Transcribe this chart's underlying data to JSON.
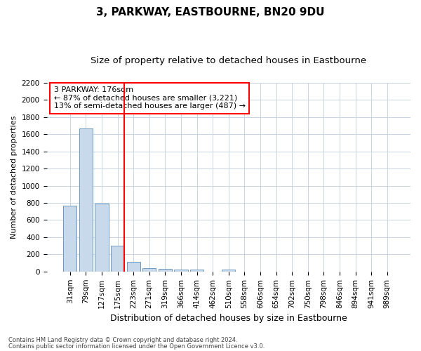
{
  "title": "3, PARKWAY, EASTBOURNE, BN20 9DU",
  "subtitle": "Size of property relative to detached houses in Eastbourne",
  "xlabel": "Distribution of detached houses by size in Eastbourne",
  "ylabel": "Number of detached properties",
  "categories": [
    "31sqm",
    "79sqm",
    "127sqm",
    "175sqm",
    "223sqm",
    "271sqm",
    "319sqm",
    "366sqm",
    "414sqm",
    "462sqm",
    "510sqm",
    "558sqm",
    "606sqm",
    "654sqm",
    "702sqm",
    "750sqm",
    "798sqm",
    "846sqm",
    "894sqm",
    "941sqm",
    "989sqm"
  ],
  "values": [
    770,
    1670,
    790,
    300,
    110,
    40,
    30,
    20,
    20,
    0,
    20,
    0,
    0,
    0,
    0,
    0,
    0,
    0,
    0,
    0,
    0
  ],
  "bar_color": "#c9d9ec",
  "bar_edge_color": "#5b8db8",
  "vline_color": "red",
  "vline_x_index": 3,
  "annotation_text": "3 PARKWAY: 176sqm\n← 87% of detached houses are smaller (3,221)\n13% of semi-detached houses are larger (487) →",
  "annotation_box_color": "white",
  "annotation_box_edge_color": "red",
  "ylim": [
    0,
    2200
  ],
  "yticks": [
    0,
    200,
    400,
    600,
    800,
    1000,
    1200,
    1400,
    1600,
    1800,
    2000,
    2200
  ],
  "footnote1": "Contains HM Land Registry data © Crown copyright and database right 2024.",
  "footnote2": "Contains public sector information licensed under the Open Government Licence v3.0.",
  "background_color": "#ffffff",
  "grid_color": "#c8d4e3",
  "title_fontsize": 11,
  "subtitle_fontsize": 9.5,
  "xlabel_fontsize": 9,
  "ylabel_fontsize": 8,
  "tick_fontsize": 7.5,
  "annotation_fontsize": 8,
  "footnote_fontsize": 6
}
